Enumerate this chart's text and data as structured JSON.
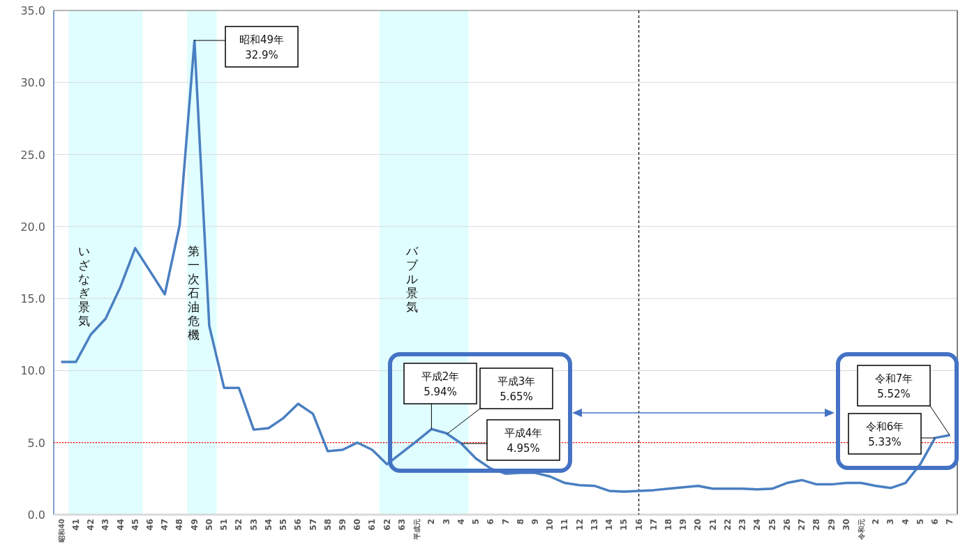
{
  "chart_data": {
    "type": "line",
    "categories": [
      "昭和40",
      "41",
      "42",
      "43",
      "44",
      "45",
      "46",
      "47",
      "48",
      "49",
      "50",
      "51",
      "52",
      "53",
      "54",
      "55",
      "56",
      "57",
      "58",
      "59",
      "60",
      "61",
      "62",
      "63",
      "平成元",
      "2",
      "3",
      "4",
      "5",
      "6",
      "7",
      "8",
      "9",
      "10",
      "11",
      "12",
      "13",
      "14",
      "15",
      "16",
      "17",
      "18",
      "19",
      "20",
      "21",
      "22",
      "23",
      "24",
      "25",
      "26",
      "27",
      "28",
      "29",
      "30",
      "令和元",
      "2",
      "3",
      "4",
      "5",
      "6",
      "7"
    ],
    "series": [
      {
        "color": "#4a7fc1",
        "values": [
          10.6,
          10.6,
          12.5,
          13.6,
          15.8,
          18.5,
          16.9,
          15.3,
          20.1,
          32.9,
          13.1,
          8.8,
          8.8,
          5.9,
          6.0,
          6.7,
          7.7,
          7.0,
          4.4,
          4.5,
          5.0,
          4.5,
          3.5,
          4.3,
          5.1,
          5.94,
          5.65,
          4.95,
          3.9,
          3.2,
          2.85,
          2.9,
          2.9,
          2.65,
          2.2,
          2.05,
          2.0,
          1.65,
          1.6,
          1.65,
          1.7,
          1.8,
          1.9,
          2.0,
          1.8,
          1.8,
          1.8,
          1.75,
          1.8,
          2.2,
          2.4,
          2.1,
          2.1,
          2.2,
          2.2,
          2.0,
          1.85,
          2.2,
          3.5,
          5.33,
          5.52
        ]
      }
    ],
    "ylim": [
      0,
      35
    ],
    "yticks": [
      {
        "value": 0,
        "label": "0.0"
      },
      {
        "value": 5,
        "label": "5.0"
      },
      {
        "value": 10,
        "label": "10.0"
      },
      {
        "value": 15,
        "label": "15.0"
      },
      {
        "value": 20,
        "label": "20.0"
      },
      {
        "value": 25,
        "label": "25.0"
      },
      {
        "value": 30,
        "label": "30.0"
      },
      {
        "value": 35,
        "label": "35.0"
      }
    ],
    "grid": "y",
    "marker": "none",
    "line_style": "solid",
    "ref_lines": [
      {
        "axis": "y",
        "value": 5,
        "color": "#ff0000",
        "line_style": "dotted"
      },
      {
        "axis": "x",
        "value": "16",
        "color": "#000000",
        "line_style": "dashed"
      }
    ],
    "bands": [
      {
        "axis": "x",
        "from": "41",
        "to": "45",
        "label": "いざなぎ景気",
        "color": "#e0feff"
      },
      {
        "axis": "x",
        "from": "49",
        "to": "50",
        "label": "第一次石油危機",
        "color": "#e0feff"
      },
      {
        "axis": "x",
        "from": "62",
        "to": "4",
        "label": "バブル景気",
        "color": "#e0feff"
      }
    ],
    "annotations": [
      "昭和49年\n32.9%",
      {
        "text": "平成2年\n5.94%",
        "x": "2",
        "y": 5.94
      },
      "平成3年\n5.65%",
      "平成4年\n4.95%",
      "令和6年\n5.33%",
      "令和7年\n5.52%"
    ]
  }
}
